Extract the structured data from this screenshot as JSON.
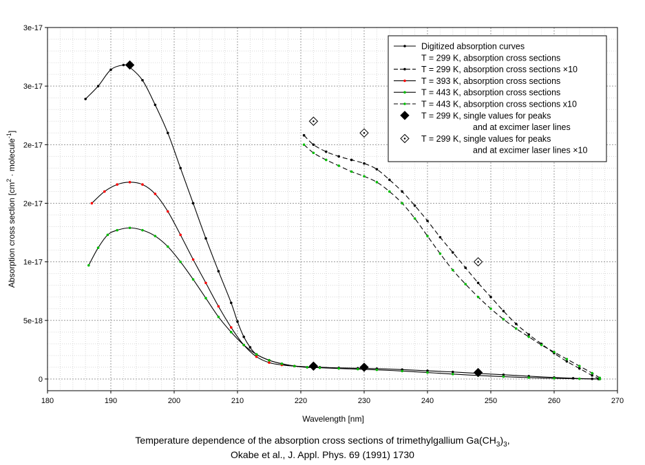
{
  "chart_data": {
    "type": "line",
    "xlabel": "Wavelength [nm]",
    "ylabel_main": "Absorption cross section [cm",
    "ylabel_sup1": "2",
    "ylabel_mid": " · molecule",
    "ylabel_sup2": "-1",
    "ylabel_end": "]",
    "xlim": [
      180,
      270
    ],
    "ylim": [
      -1e-18,
      3e-17
    ],
    "x_ticks": [
      {
        "v": 180,
        "label": "180"
      },
      {
        "v": 190,
        "label": "190"
      },
      {
        "v": 200,
        "label": "200"
      },
      {
        "v": 210,
        "label": "210"
      },
      {
        "v": 220,
        "label": "220"
      },
      {
        "v": 230,
        "label": "230"
      },
      {
        "v": 240,
        "label": "240"
      },
      {
        "v": 250,
        "label": "250"
      },
      {
        "v": 260,
        "label": "260"
      },
      {
        "v": 270,
        "label": "270"
      }
    ],
    "y_ticks": [
      {
        "v": 0,
        "label": "0"
      },
      {
        "v": 5e-18,
        "label": "5e-18"
      },
      {
        "v": 1e-17,
        "label": "1e-17"
      },
      {
        "v": 1.5e-17,
        "label": "2e-17"
      },
      {
        "v": 2e-17,
        "label": "2e-17"
      },
      {
        "v": 2.5e-17,
        "label": "3e-17"
      },
      {
        "v": 3e-17,
        "label": "3e-17"
      }
    ],
    "grid": true,
    "legend_position": "top-right",
    "series": [
      {
        "name": "T = 299 K, absorption cross sections",
        "color": "#000000",
        "marker_color": "#000000",
        "dash": "",
        "x": [
          186,
          188,
          190,
          192,
          193,
          195,
          197,
          199,
          201,
          203,
          205,
          207,
          209,
          210,
          211,
          212,
          213,
          215,
          217,
          219,
          221,
          223,
          226,
          229,
          232,
          236,
          240,
          244,
          248,
          252,
          256,
          260,
          263,
          266,
          267
        ],
        "y": [
          2.39e-17,
          2.5e-17,
          2.64e-17,
          2.68e-17,
          2.66e-17,
          2.55e-17,
          2.34e-17,
          2.1e-17,
          1.8e-17,
          1.5e-17,
          1.2e-17,
          9.2e-18,
          6.5e-18,
          4.9e-18,
          3.6e-18,
          2.7e-18,
          2.1e-18,
          1.6e-18,
          1.3e-18,
          1.1e-18,
          1e-18,
          1e-18,
          9.5e-19,
          9.2e-19,
          8.8e-19,
          8e-19,
          7e-19,
          6e-19,
          4.8e-19,
          3.6e-19,
          2.4e-19,
          1.3e-19,
          6e-20,
          1e-20,
          0
        ]
      },
      {
        "name": "T = 299 K, absorption cross sections ×10",
        "color": "#000000",
        "marker_color": "#000000",
        "dash": "7,4",
        "x": [
          220.5,
          222,
          224,
          226,
          228,
          230,
          232,
          234,
          236,
          238,
          240,
          242,
          244,
          246,
          248,
          250,
          252,
          254,
          256,
          258,
          260,
          262,
          264,
          266,
          267.2
        ],
        "y": [
          2.08e-17,
          2e-17,
          1.94e-17,
          1.9e-17,
          1.87e-17,
          1.84e-17,
          1.79e-17,
          1.7e-17,
          1.6e-17,
          1.48e-17,
          1.35e-17,
          1.21e-17,
          1.08e-17,
          9.5e-18,
          8.2e-18,
          7e-18,
          5.8e-18,
          4.7e-18,
          3.8e-18,
          3e-18,
          2.2e-18,
          1.5e-18,
          9e-19,
          3e-19,
          0
        ]
      },
      {
        "name": "T = 393 K, absorption cross sections",
        "color": "#000000",
        "marker_color": "#ff0000",
        "dash": "",
        "x": [
          187,
          189,
          191,
          193,
          195,
          197,
          199,
          201,
          203,
          205,
          207,
          209,
          211,
          213,
          215,
          217,
          219,
          222
        ],
        "y": [
          1.5e-17,
          1.6e-17,
          1.66e-17,
          1.68e-17,
          1.66e-17,
          1.58e-17,
          1.43e-17,
          1.23e-17,
          1.02e-17,
          8.2e-18,
          6.2e-18,
          4.4e-18,
          2.9e-18,
          1.9e-18,
          1.4e-18,
          1.2e-18,
          1.1e-18,
          1e-18
        ]
      },
      {
        "name": "T = 443 K, absorption cross sections",
        "color": "#000000",
        "marker_color": "#00bb00",
        "dash": "",
        "x": [
          186.5,
          188,
          189.5,
          191,
          193,
          195,
          197,
          199,
          201,
          203,
          205,
          207,
          209,
          211,
          213,
          215,
          217,
          219,
          221,
          223,
          226,
          229,
          232,
          236,
          240,
          244,
          248,
          252,
          256,
          260,
          264,
          267.2
        ],
        "y": [
          9.7e-18,
          1.12e-17,
          1.23e-17,
          1.27e-17,
          1.29e-17,
          1.27e-17,
          1.22e-17,
          1.13e-17,
          1e-17,
          8.5e-18,
          6.9e-18,
          5.3e-18,
          4e-18,
          2.9e-18,
          2.1e-18,
          1.6e-18,
          1.3e-18,
          1.1e-18,
          1e-18,
          9.6e-19,
          9e-19,
          8.4e-19,
          7.8e-19,
          6.8e-19,
          5.5e-19,
          4.2e-19,
          3e-19,
          2e-19,
          1.2e-19,
          6e-20,
          2e-20,
          0
        ]
      },
      {
        "name": "T = 443 K, absorption cross sections x10",
        "color": "#000000",
        "marker_color": "#00bb00",
        "dash": "7,4",
        "x": [
          220.5,
          222,
          224,
          226,
          228,
          230,
          232,
          234,
          236,
          238,
          240,
          242,
          244,
          246,
          248,
          250,
          252,
          254,
          256,
          258,
          260,
          262,
          264,
          266,
          267.2
        ],
        "y": [
          2e-17,
          1.93e-17,
          1.87e-17,
          1.82e-17,
          1.77e-17,
          1.73e-17,
          1.68e-17,
          1.6e-17,
          1.5e-17,
          1.37e-17,
          1.22e-17,
          1.07e-17,
          9.3e-18,
          8.1e-18,
          7e-18,
          6e-18,
          5.1e-18,
          4.3e-18,
          3.6e-18,
          2.9e-18,
          2.3e-18,
          1.7e-18,
          1.1e-18,
          5e-19,
          1e-19
        ]
      }
    ],
    "peak_points": {
      "name": "T = 299 K, single values for peaks and at excimer laser lines",
      "x": [
        193,
        222,
        230,
        248
      ],
      "y": [
        2.68e-17,
        1.1e-18,
        1e-18,
        5.5e-19
      ]
    },
    "peak_points_x10": {
      "name": "T = 299 K, single values for peaks and at excimer laser lines ×10",
      "x": [
        222,
        230,
        248
      ],
      "y": [
        2.2e-17,
        2.1e-17,
        1e-17
      ]
    },
    "legend": [
      {
        "type": "solid",
        "marker": "#000000",
        "text": "Digitized absorption curves"
      },
      {
        "type": "none",
        "text": "T = 299 K, absorption cross sections"
      },
      {
        "type": "dash",
        "marker": "#000000",
        "text": "T = 299 K, absorption cross sections ×10"
      },
      {
        "type": "solid",
        "marker": "#ff0000",
        "text": "T = 393 K, absorption cross sections"
      },
      {
        "type": "solid",
        "marker": "#00bb00",
        "text": "T = 443 K, absorption cross sections"
      },
      {
        "type": "dash",
        "marker": "#00bb00",
        "text": "T = 443 K, absorption cross sections x10"
      },
      {
        "type": "diamond",
        "text": "T = 299 K, single values for peaks"
      },
      {
        "type": "none",
        "text": "and at excimer laser lines",
        "indent": true
      },
      {
        "type": "diamond-open",
        "text": "T = 299 K, single values for peaks"
      },
      {
        "type": "none",
        "text": "and at excimer laser lines ×10",
        "indent": true
      }
    ]
  },
  "caption": {
    "line1_pre": "Temperature dependence of the absorption cross sections of trimethylgallium Ga(CH",
    "line1_sub": "3",
    "line1_mid": ")",
    "line1_sub2": "3",
    "line1_end": ",",
    "line2": "Okabe et al., J. Appl. Phys. 69 (1991) 1730"
  }
}
